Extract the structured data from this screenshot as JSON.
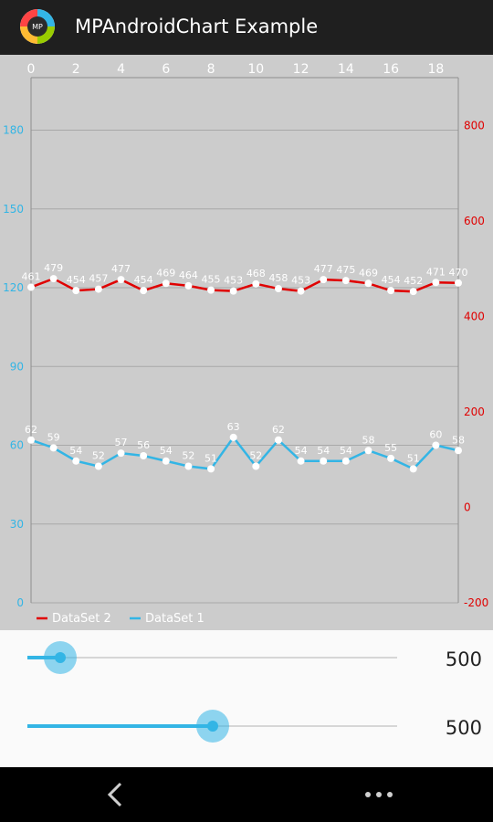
{
  "app": {
    "title": "MPAndroidChart Example",
    "icon_text": "MP",
    "icon_name": "mp-app-icon"
  },
  "chart_data": {
    "type": "line",
    "x": [
      0,
      1,
      2,
      3,
      4,
      5,
      6,
      7,
      8,
      9,
      10,
      11,
      12,
      13,
      14,
      15,
      16,
      17,
      18,
      19
    ],
    "x_tick_labels": [
      "0",
      "2",
      "4",
      "6",
      "8",
      "10",
      "12",
      "14",
      "16",
      "18"
    ],
    "x_axis_position": "top",
    "left_axis": {
      "ticks": [
        "0",
        "30",
        "60",
        "90",
        "120",
        "150",
        "180"
      ],
      "range": [
        0,
        200
      ],
      "color": "#33b5e5"
    },
    "right_axis": {
      "ticks": [
        "-200",
        "0",
        "200",
        "400",
        "600",
        "800"
      ],
      "range": [
        -200,
        900
      ],
      "color": "#e00000"
    },
    "grid": true,
    "legend_position": "bottom-left",
    "series": [
      {
        "name": "DataSet 2",
        "axis": "right",
        "color": "#e00000",
        "values": [
          461,
          479,
          454,
          457,
          477,
          454,
          469,
          464,
          455,
          453,
          468,
          458,
          453,
          477,
          475,
          469,
          454,
          452,
          471,
          470
        ]
      },
      {
        "name": "DataSet 1",
        "axis": "left",
        "color": "#33b5e5",
        "values": [
          62,
          59,
          54,
          52,
          57,
          56,
          54,
          52,
          51,
          63,
          52,
          62,
          54,
          54,
          54,
          58,
          55,
          51,
          60,
          58
        ]
      }
    ]
  },
  "controls": {
    "slider1": {
      "value_label": "500",
      "fraction": 0.09
    },
    "slider2": {
      "value_label": "500",
      "fraction": 0.502
    }
  },
  "navbar": {
    "back_icon": "back-chevron-icon",
    "menu_icon": "overflow-menu-icon"
  }
}
